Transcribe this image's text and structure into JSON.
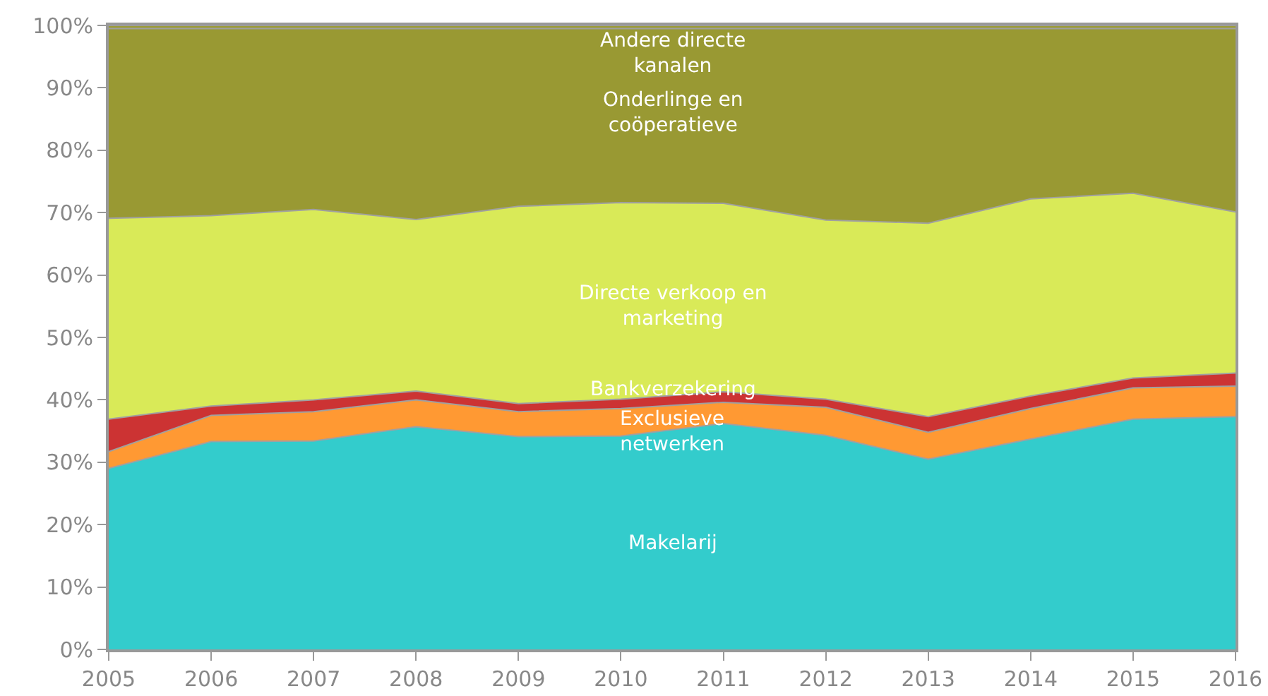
{
  "chart_data": {
    "type": "area",
    "stacked": true,
    "x": [
      2005,
      2006,
      2007,
      2008,
      2009,
      2010,
      2011,
      2012,
      2013,
      2014,
      2015,
      2016
    ],
    "series": [
      {
        "name": "Makelarij",
        "color": "#33cccc",
        "values": [
          29.0,
          33.3,
          33.4,
          35.7,
          34.1,
          34.2,
          36.2,
          34.3,
          30.5,
          33.7,
          36.9,
          37.3
        ]
      },
      {
        "name": "Exclusieve netwerken",
        "color": "#ff9933",
        "values": [
          2.7,
          4.2,
          4.7,
          4.3,
          4.0,
          4.4,
          3.4,
          4.5,
          4.3,
          4.9,
          5.0,
          4.9
        ]
      },
      {
        "name": "Bankverzekering",
        "color": "#cc3333",
        "values": [
          5.2,
          1.5,
          1.9,
          1.4,
          1.3,
          1.5,
          1.7,
          1.3,
          2.5,
          2.0,
          1.6,
          2.1
        ]
      },
      {
        "name": "Directe verkoop en marketing",
        "color": "#d9ea58",
        "values": [
          32.2,
          30.5,
          30.5,
          27.5,
          31.6,
          31.5,
          30.2,
          28.7,
          31.0,
          31.6,
          29.6,
          25.8
        ]
      },
      {
        "name": "Onderlinge en coöperatieve",
        "color": "#999933",
        "values": [
          30.4,
          30.0,
          29.0,
          30.6,
          28.5,
          27.9,
          28.0,
          30.7,
          31.2,
          27.3,
          26.4,
          29.4
        ]
      },
      {
        "name": "Andere directe kanalen",
        "color": "#9c9c3a",
        "values": [
          0.5,
          0.5,
          0.5,
          0.5,
          0.5,
          0.5,
          0.5,
          0.5,
          0.5,
          0.5,
          0.5,
          0.5
        ]
      }
    ],
    "xlim": [
      2005,
      2016
    ],
    "xticks": [
      2005,
      2006,
      2007,
      2008,
      2009,
      2010,
      2011,
      2012,
      2013,
      2014,
      2015,
      2016
    ],
    "ylim": [
      0,
      100
    ],
    "yticks": [
      {
        "value": 0,
        "label": "0%"
      },
      {
        "value": 10,
        "label": "10%"
      },
      {
        "value": 20,
        "label": "20%"
      },
      {
        "value": 30,
        "label": "30%"
      },
      {
        "value": 40,
        "label": "40%"
      },
      {
        "value": 50,
        "label": "50%"
      },
      {
        "value": 60,
        "label": "60%"
      },
      {
        "value": 70,
        "label": "70%"
      },
      {
        "value": 80,
        "label": "80%"
      },
      {
        "value": 90,
        "label": "90%"
      },
      {
        "value": 100,
        "label": "100%"
      }
    ],
    "legend": false
  }
}
